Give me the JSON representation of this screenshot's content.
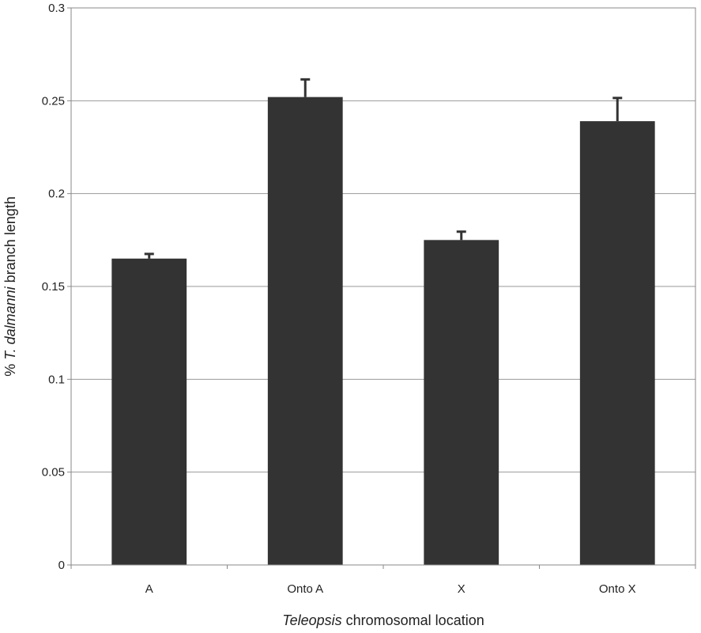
{
  "chart_data": {
    "type": "bar",
    "categories": [
      "A",
      "Onto A",
      "X",
      "Onto X"
    ],
    "values": [
      0.165,
      0.252,
      0.175,
      0.239
    ],
    "error_upper": [
      0.0025,
      0.0095,
      0.0045,
      0.0125
    ],
    "ylim": [
      0,
      0.3
    ],
    "yticks": [
      "0",
      "0.05",
      "0.1",
      "0.15",
      "0.2",
      "0.25",
      "0.3"
    ],
    "xlabel": {
      "italic": "Teleopsis",
      "rest": " chromosomal location"
    },
    "ylabel": {
      "pre": "% ",
      "italic": "T. dalmanni",
      "rest": " branch length"
    },
    "grid": true,
    "colors": {
      "bar": "#333333",
      "grid": "#999999",
      "axis": "#888888"
    }
  }
}
